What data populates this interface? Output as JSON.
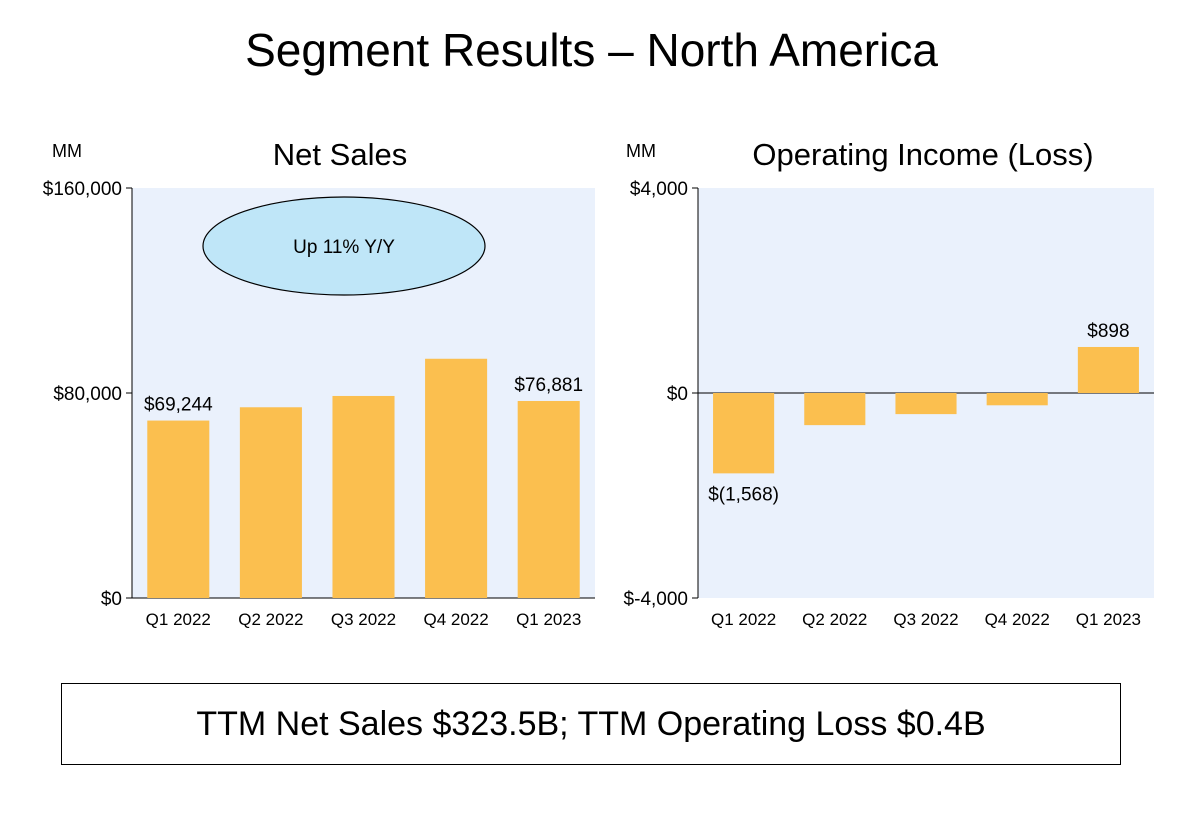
{
  "page": {
    "title": "Segment Results – North America",
    "summary": "TTM Net Sales $323.5B; TTM Operating Loss $0.4B"
  },
  "chart_data": [
    {
      "type": "bar",
      "title": "Net Sales",
      "unit_label": "MM",
      "categories": [
        "Q1 2022",
        "Q2 2022",
        "Q3 2022",
        "Q4 2022",
        "Q1 2023"
      ],
      "values": [
        69244,
        74430,
        78843,
        93363,
        76881
      ],
      "data_labels": [
        "$69,244",
        "",
        "",
        "",
        "$76,881"
      ],
      "yticks": [
        0,
        80000,
        160000
      ],
      "ytick_labels": [
        "$0",
        "$80,000",
        "$160,000"
      ],
      "ylim": [
        0,
        160000
      ],
      "annotation": "Up 11% Y/Y",
      "grid": false,
      "colors": {
        "bar": "#FBBF4F",
        "plot_bg": "#EAF1FC",
        "annotation_fill": "#BFE6F8"
      }
    },
    {
      "type": "bar",
      "title": "Operating Income (Loss)",
      "unit_label": "MM",
      "categories": [
        "Q1 2022",
        "Q2 2022",
        "Q3 2022",
        "Q4 2022",
        "Q1 2023"
      ],
      "values": [
        -1568,
        -627,
        -412,
        -240,
        898
      ],
      "data_labels": [
        "$(1,568)",
        "",
        "",
        "",
        "$898"
      ],
      "yticks": [
        -4000,
        0,
        4000
      ],
      "ytick_labels": [
        "$-4,000",
        "$0",
        "$4,000"
      ],
      "ylim": [
        -4000,
        4000
      ],
      "grid": false,
      "colors": {
        "bar": "#FBBF4F",
        "plot_bg": "#EAF1FC"
      }
    }
  ]
}
